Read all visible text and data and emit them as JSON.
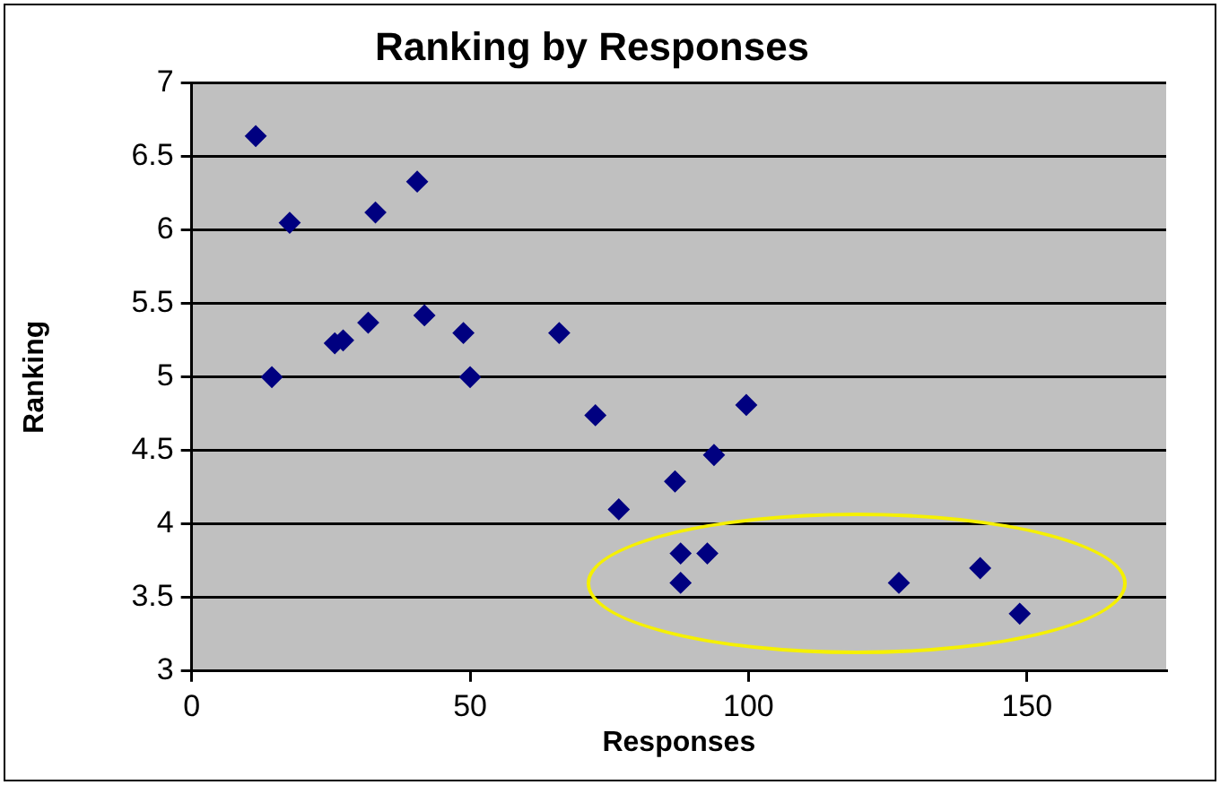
{
  "chart_data": {
    "type": "scatter",
    "title": "Ranking by Responses",
    "xlabel": "Responses",
    "ylabel": "Ranking",
    "x": [
      11.5,
      17.6,
      14.4,
      33,
      40.5,
      25.7,
      27.2,
      31.7,
      41.8,
      48.8,
      50,
      66,
      72.5,
      76.7,
      86.8,
      93.8,
      99.6,
      87.8,
      92.6,
      87.8,
      127,
      141.6,
      148.7
    ],
    "series": [
      {
        "color": "#000080",
        "values": [
          6.64,
          6.05,
          5.0,
          6.12,
          6.33,
          5.23,
          5.25,
          5.37,
          5.42,
          5.3,
          5.0,
          5.3,
          4.74,
          4.1,
          4.29,
          4.47,
          4.81,
          3.8,
          3.8,
          3.6,
          3.6,
          3.7,
          3.39
        ]
      }
    ],
    "xlim": [
      0,
      175
    ],
    "xticks": [
      0,
      50,
      100,
      150
    ],
    "ylim": [
      3,
      7
    ],
    "yticks": [
      3,
      3.5,
      4,
      4.5,
      5,
      5.5,
      6,
      6.5,
      7
    ],
    "grid": "y",
    "legend": false,
    "marker": "diamond"
  }
}
